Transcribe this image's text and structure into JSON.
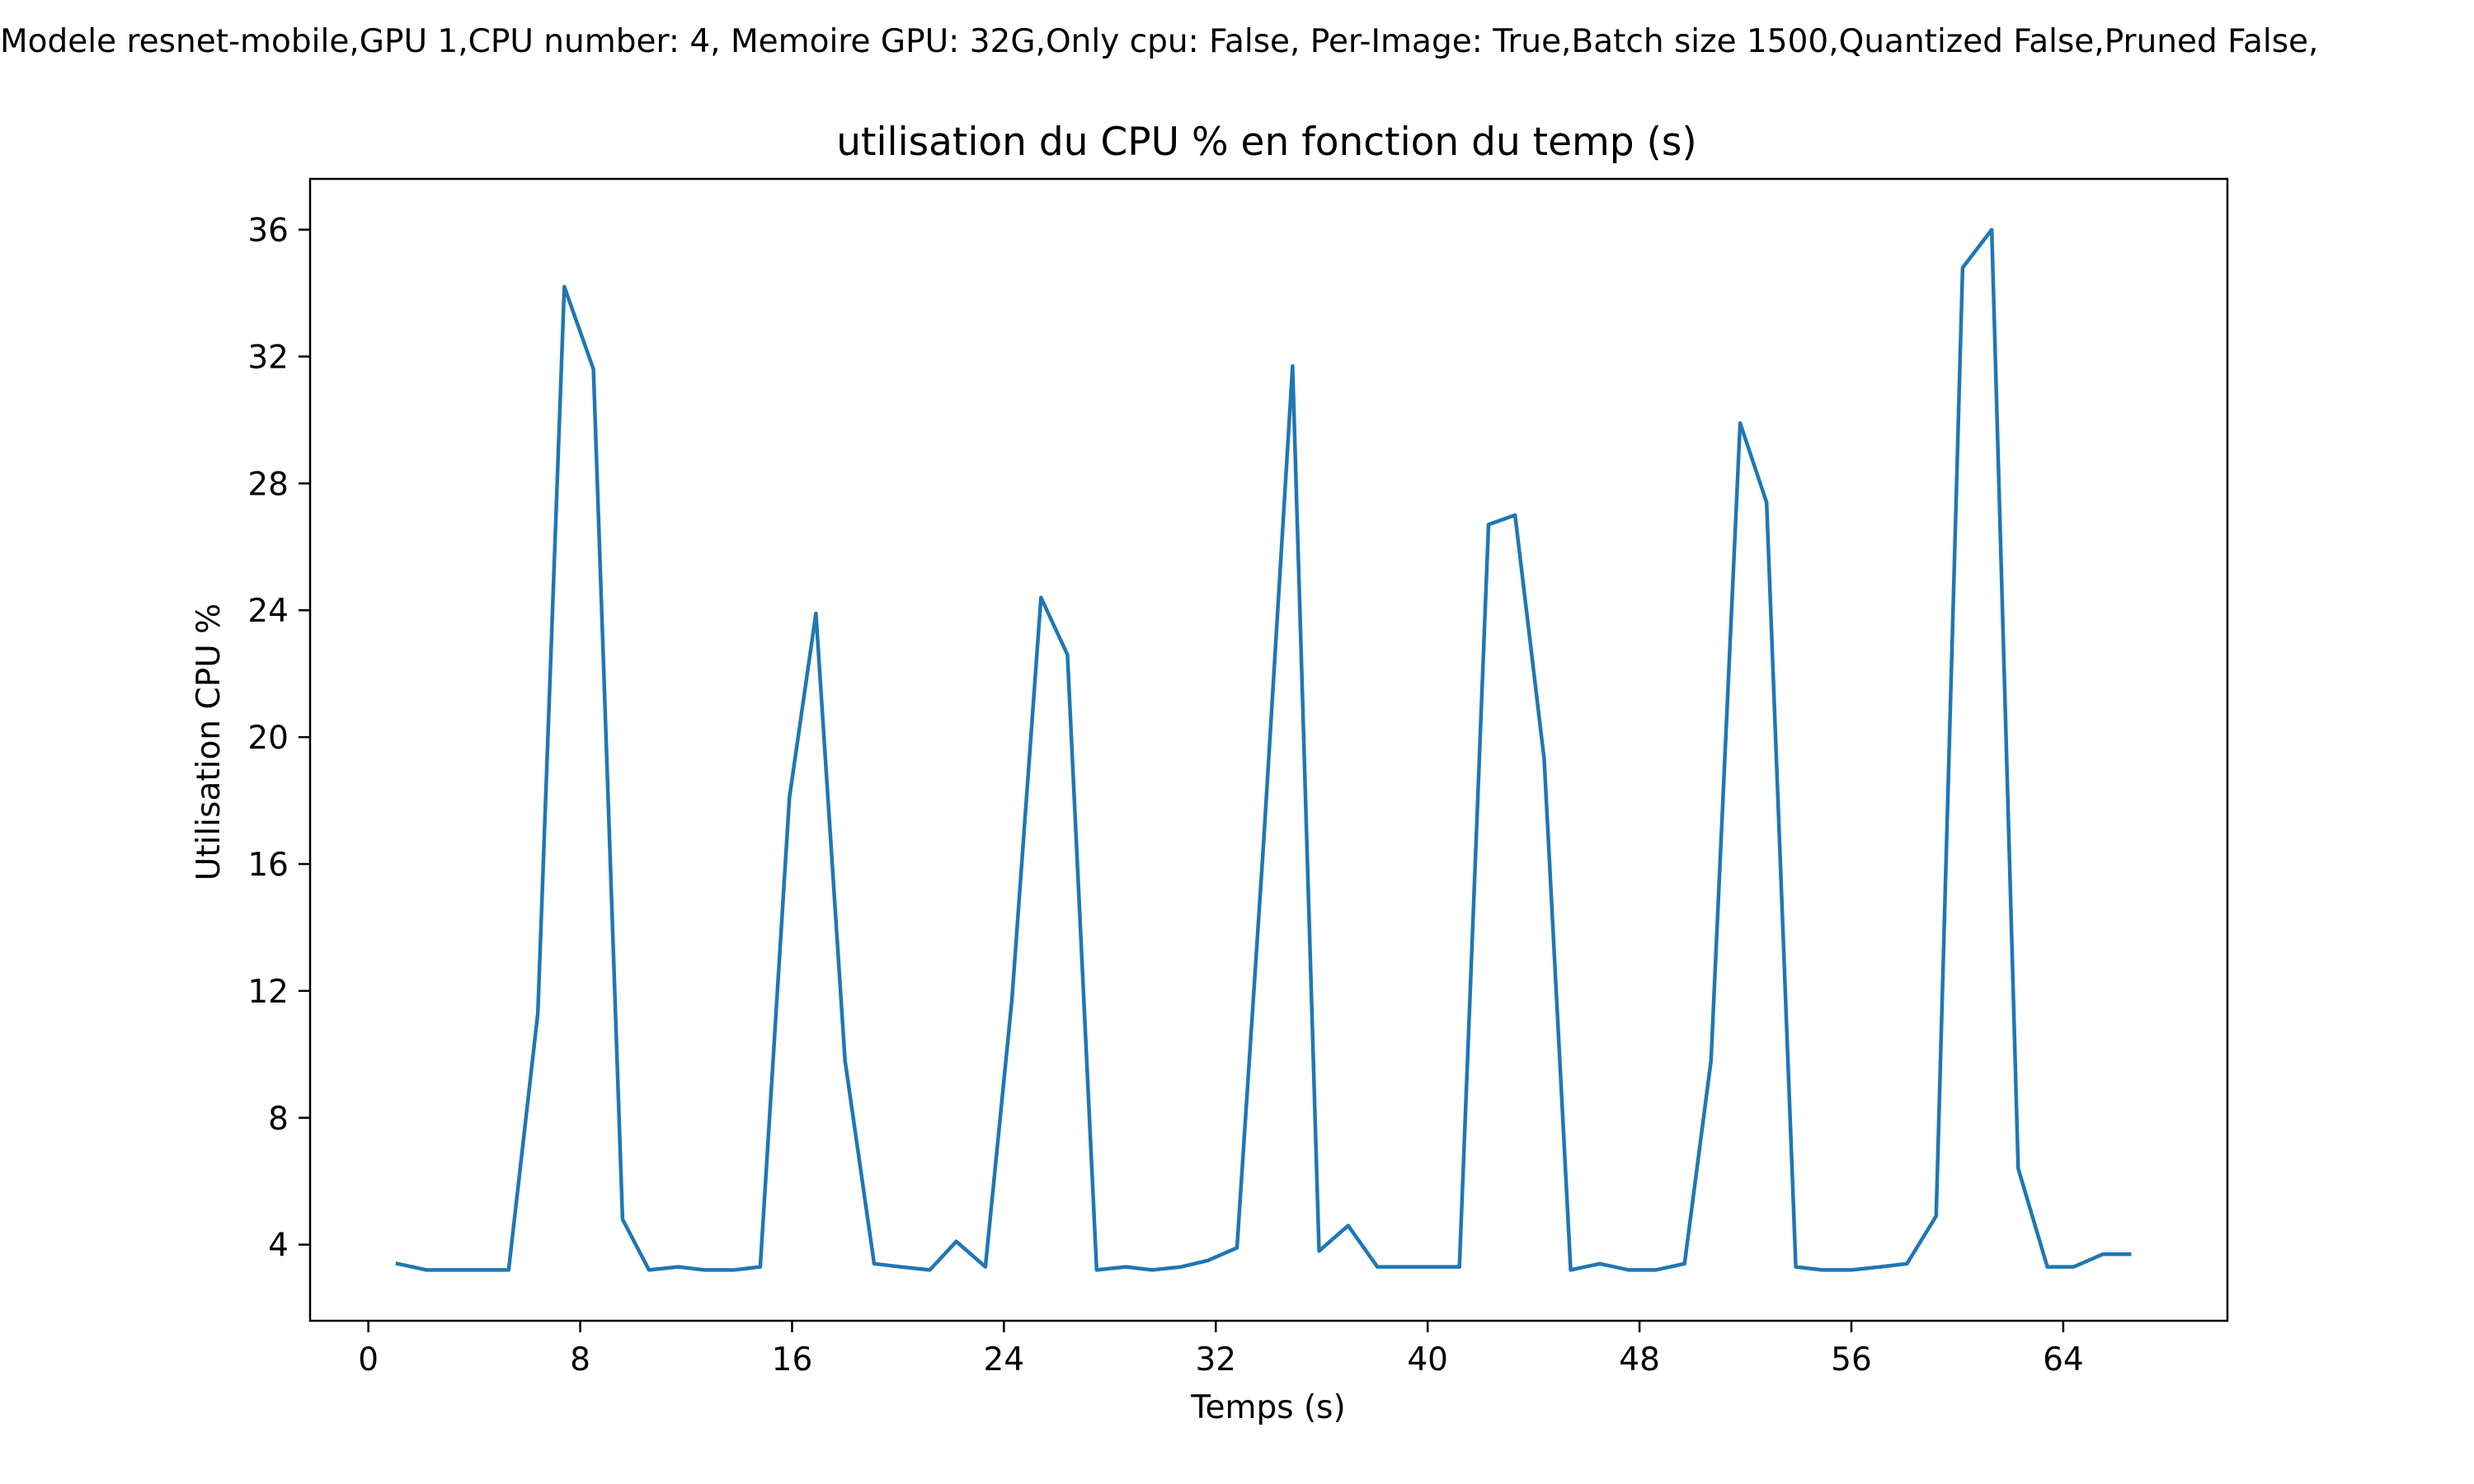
{
  "figure": {
    "suptitle": "Modele resnet-mobile,GPU 1,CPU number: 4, Memoire GPU: 32G,Only cpu: False, Per-Image: True,Batch size 1500,Quantized False,Pruned False,"
  },
  "chart_data": {
    "type": "line",
    "title": "utilisation du CPU % en fonction du temp (s)",
    "xlabel": "Temps (s)",
    "ylabel": "Utilisation CPU %",
    "xlim": [
      -2.2,
      70.2
    ],
    "ylim": [
      1.6,
      37.6
    ],
    "xticks": [
      0,
      8,
      16,
      24,
      32,
      40,
      48,
      56,
      64
    ],
    "yticks": [
      4,
      8,
      12,
      16,
      20,
      24,
      28,
      32,
      36
    ],
    "grid": false,
    "legend": "none",
    "line_color": "#1f77b4",
    "series": [
      {
        "x": [
          1.1,
          2.2,
          3.2,
          4.3,
          5.3,
          6.4,
          7.4,
          8.5,
          9.6,
          10.6,
          11.7,
          12.7,
          13.8,
          14.8,
          15.9,
          16.9,
          18.0,
          19.1,
          20.1,
          21.2,
          22.2,
          23.3,
          24.3,
          25.4,
          26.4,
          27.5,
          28.6,
          29.6,
          30.7,
          31.7,
          32.8,
          33.8,
          34.9,
          35.9,
          37.0,
          38.1,
          39.1,
          40.2,
          41.2,
          42.3,
          43.3,
          44.4,
          45.4,
          46.5,
          47.6,
          48.6,
          49.7,
          50.7,
          51.8,
          52.8,
          53.9,
          54.9,
          56.0,
          57.1,
          58.1,
          59.2,
          60.2,
          61.3,
          62.3,
          63.4,
          64.4,
          65.5,
          66.5
        ],
        "y": [
          3.4,
          3.2,
          3.2,
          3.2,
          3.2,
          11.3,
          34.2,
          31.6,
          4.8,
          3.2,
          3.3,
          3.2,
          3.2,
          3.3,
          18.1,
          23.9,
          9.8,
          3.4,
          3.3,
          3.2,
          4.1,
          3.3,
          11.7,
          24.4,
          22.6,
          3.2,
          3.3,
          3.2,
          3.3,
          3.5,
          3.9,
          16.6,
          31.7,
          3.8,
          4.6,
          3.3,
          3.3,
          3.3,
          3.3,
          26.7,
          27.0,
          19.3,
          3.2,
          3.4,
          3.2,
          3.2,
          3.4,
          9.8,
          29.9,
          27.4,
          3.3,
          3.2,
          3.2,
          3.3,
          3.4,
          4.9,
          34.8,
          36.0,
          6.4,
          3.3,
          3.3,
          3.7,
          3.7
        ]
      }
    ]
  }
}
